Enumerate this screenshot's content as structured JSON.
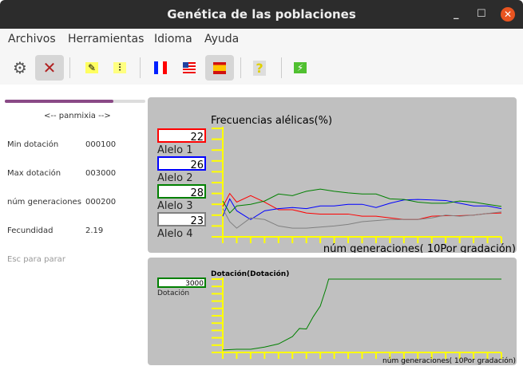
{
  "window": {
    "title": "Genética de las poblaciones",
    "minimize": "_",
    "maximize": "☐",
    "close": "✕"
  },
  "menu": [
    "Archivos",
    "Herramientas",
    "Idioma",
    "Ayuda"
  ],
  "toolbar": [
    {
      "icon": "gear-icon",
      "glyph": "⚙",
      "active": false
    },
    {
      "icon": "stop-cross-icon",
      "glyph": "✕",
      "active": true
    },
    {
      "icon": "scroll-icon",
      "glyph": "✎",
      "active": false
    },
    {
      "icon": "sliders-icon",
      "glyph": "⫶",
      "active": false
    },
    {
      "icon": "flag-france-icon",
      "active": false
    },
    {
      "icon": "flag-usa-icon",
      "active": false
    },
    {
      "icon": "flag-spain-icon",
      "active": true
    },
    {
      "icon": "help-icon",
      "glyph": "?",
      "active": false
    },
    {
      "icon": "run-icon",
      "glyph": "⚡",
      "active": false
    }
  ],
  "left": {
    "progress": 0.77,
    "mode": "<-- panmixia -->",
    "params": [
      {
        "label": "Min dotación",
        "value": "000100"
      },
      {
        "label": "Max dotación",
        "value": "003000"
      },
      {
        "label": "núm generaciones",
        "value": "000200"
      },
      {
        "label": "Fecundidad",
        "value": "2.19"
      }
    ],
    "hint": "Esc para parar"
  },
  "chart_data": [
    {
      "type": "line",
      "title": "Frecuencias alélicas(%)",
      "xlabel": "núm generaciones(   10Por gradación)",
      "xlim": [
        0,
        200
      ],
      "ylim": [
        0,
        100
      ],
      "xtick_step": 10,
      "ytick_step": 10,
      "axis_color": "#ffff00",
      "background": "#c0c0c0",
      "x": [
        0,
        5,
        10,
        20,
        30,
        40,
        50,
        60,
        70,
        80,
        90,
        100,
        110,
        120,
        130,
        140,
        150,
        160,
        170,
        180,
        190,
        200
      ],
      "series": [
        {
          "name": "Alelo 1",
          "current": "22",
          "color": "#ff0000",
          "values": [
            28,
            40,
            32,
            38,
            32,
            25,
            25,
            22,
            21,
            21,
            21,
            19,
            19,
            17.5,
            16,
            16,
            19,
            19.5,
            19.5,
            20,
            21.5,
            22
          ]
        },
        {
          "name": "Alelo 2",
          "current": "26",
          "color": "#0000ff",
          "values": [
            19,
            35,
            24,
            16,
            24,
            26,
            27,
            26,
            28.5,
            28.5,
            30,
            30,
            27,
            31,
            34,
            34.5,
            34,
            33.5,
            31,
            28.5,
            28.5,
            26
          ]
        },
        {
          "name": "Alelo 3",
          "current": "28",
          "color": "#008000",
          "values": [
            33,
            22,
            28.5,
            30,
            33,
            39.5,
            38,
            42,
            44,
            42,
            40.5,
            39.5,
            39.5,
            35,
            34.5,
            32,
            31,
            31,
            33,
            32,
            30,
            28
          ]
        },
        {
          "name": "Alelo 4",
          "current": "23",
          "color": "#808080",
          "values": [
            26,
            14,
            8,
            17.5,
            16,
            10,
            8,
            8,
            9,
            10,
            11.5,
            14,
            15,
            16,
            16,
            16,
            17.5,
            20,
            19,
            20,
            21.5,
            23
          ]
        }
      ]
    },
    {
      "type": "line",
      "title": "Dotación(Dotación)",
      "xlabel": "núm generaciones(   10Por gradación)",
      "xlim": [
        0,
        200
      ],
      "ylim": [
        0,
        3000
      ],
      "xtick_step": 10,
      "axis_color": "#ffff00",
      "background": "#c0c0c0",
      "x": [
        0,
        10,
        20,
        30,
        40,
        50,
        55,
        60,
        65,
        70,
        74,
        76,
        200
      ],
      "series": [
        {
          "name": "Dotación",
          "current": "3000",
          "color": "#008000",
          "values": [
            100,
            130,
            130,
            220,
            350,
            650,
            980,
            960,
            1470,
            1900,
            2600,
            3000,
            3000
          ]
        }
      ]
    }
  ]
}
